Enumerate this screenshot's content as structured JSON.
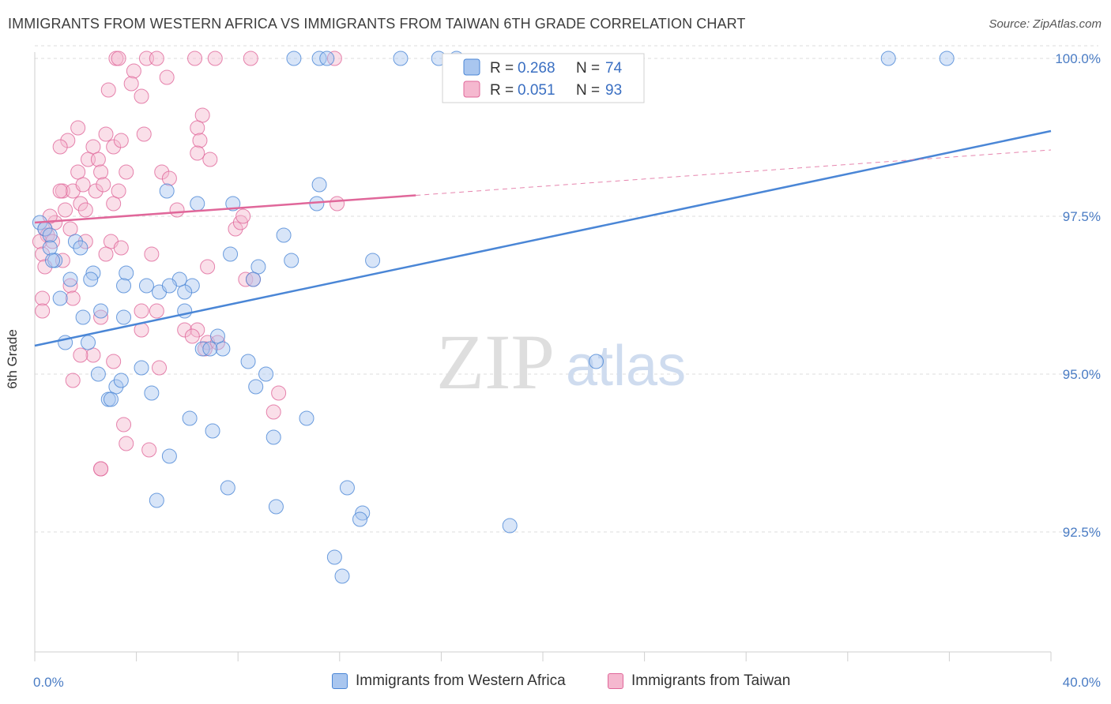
{
  "title": "IMMIGRANTS FROM WESTERN AFRICA VS IMMIGRANTS FROM TAIWAN 6TH GRADE CORRELATION CHART",
  "source": "Source: ZipAtlas.com",
  "watermark": {
    "zip": "ZIP",
    "atlas": "atlas"
  },
  "colors": {
    "blue": "#4a86d6",
    "blue_fill": "#a9c6ef",
    "pink": "#e0679a",
    "pink_fill": "#f5b8cf",
    "tick": "#4a7cc4"
  },
  "legend": {
    "r_label": "R =",
    "n_label": "N =",
    "rows": [
      {
        "r": "0.268",
        "n": "74"
      },
      {
        "r": "0.051",
        "n": "93"
      }
    ]
  },
  "bottom_legend": [
    "Immigrants from Western Africa",
    "Immigrants from Taiwan"
  ],
  "chart_data": {
    "type": "scatter",
    "title": "IMMIGRANTS FROM WESTERN AFRICA VS IMMIGRANTS FROM TAIWAN 6TH GRADE CORRELATION CHART",
    "xlabel": "",
    "ylabel": "6th Grade",
    "xlim": [
      0,
      40
    ],
    "ylim": [
      90.6,
      100.2
    ],
    "x_tick_labels": [
      {
        "value": 0,
        "label": "0.0%"
      },
      {
        "value": 40,
        "label": "40.0%"
      }
    ],
    "y_tick_labels": [
      {
        "value": 100.0,
        "label": "100.0%"
      },
      {
        "value": 97.5,
        "label": "97.5%"
      },
      {
        "value": 95.0,
        "label": "95.0%"
      },
      {
        "value": 92.5,
        "label": "92.5%"
      }
    ],
    "series": [
      {
        "name": "Immigrants from Western Africa",
        "color": "#4a86d6",
        "trend": {
          "x": [
            0,
            40
          ],
          "y": [
            95.45,
            98.85
          ],
          "dashed_after": null
        },
        "points": [
          [
            10.2,
            100.0
          ],
          [
            11.2,
            100.0
          ],
          [
            11.5,
            100.0
          ],
          [
            14.4,
            100.0
          ],
          [
            15.9,
            100.0
          ],
          [
            16.6,
            100.0
          ],
          [
            33.6,
            100.0
          ],
          [
            35.9,
            100.0
          ],
          [
            0.2,
            97.4
          ],
          [
            0.4,
            97.3
          ],
          [
            0.6,
            97.2
          ],
          [
            0.8,
            96.8
          ],
          [
            0.6,
            97.0
          ],
          [
            0.7,
            96.8
          ],
          [
            1.6,
            97.1
          ],
          [
            1.8,
            97.0
          ],
          [
            2.3,
            96.6
          ],
          [
            1.4,
            96.5
          ],
          [
            1.0,
            96.2
          ],
          [
            2.6,
            96.0
          ],
          [
            1.9,
            95.9
          ],
          [
            1.2,
            95.5
          ],
          [
            2.1,
            95.5
          ],
          [
            3.5,
            95.9
          ],
          [
            3.6,
            96.6
          ],
          [
            3.5,
            96.4
          ],
          [
            4.4,
            96.4
          ],
          [
            4.9,
            96.3
          ],
          [
            5.7,
            96.5
          ],
          [
            6.2,
            96.4
          ],
          [
            5.3,
            96.4
          ],
          [
            5.9,
            96.0
          ],
          [
            5.2,
            97.9
          ],
          [
            6.4,
            97.7
          ],
          [
            7.8,
            97.7
          ],
          [
            7.7,
            96.9
          ],
          [
            8.8,
            96.7
          ],
          [
            8.6,
            96.5
          ],
          [
            9.8,
            97.2
          ],
          [
            10.1,
            96.8
          ],
          [
            11.1,
            97.7
          ],
          [
            11.2,
            98.0
          ],
          [
            13.3,
            96.8
          ],
          [
            7.2,
            95.6
          ],
          [
            7.4,
            95.4
          ],
          [
            6.6,
            95.4
          ],
          [
            6.9,
            95.4
          ],
          [
            8.4,
            95.2
          ],
          [
            8.7,
            94.8
          ],
          [
            9.1,
            95.0
          ],
          [
            2.5,
            95.0
          ],
          [
            3.2,
            94.8
          ],
          [
            3.4,
            94.9
          ],
          [
            2.9,
            94.6
          ],
          [
            3.0,
            94.6
          ],
          [
            4.2,
            95.1
          ],
          [
            4.6,
            94.7
          ],
          [
            6.1,
            94.3
          ],
          [
            7.0,
            94.1
          ],
          [
            9.4,
            94.0
          ],
          [
            10.7,
            94.3
          ],
          [
            5.3,
            93.7
          ],
          [
            4.8,
            93.0
          ],
          [
            7.6,
            93.2
          ],
          [
            9.5,
            92.9
          ],
          [
            12.3,
            93.2
          ],
          [
            12.9,
            92.8
          ],
          [
            12.8,
            92.7
          ],
          [
            18.7,
            92.6
          ],
          [
            22.1,
            95.2
          ],
          [
            11.8,
            92.1
          ],
          [
            12.1,
            91.8
          ],
          [
            2.2,
            96.5
          ],
          [
            5.9,
            96.3
          ]
        ]
      },
      {
        "name": "Immigrants from Taiwan",
        "color": "#e0679a",
        "trend": {
          "x": [
            0,
            40
          ],
          "y": [
            97.4,
            98.55
          ],
          "solid_until": 15.0
        },
        "points": [
          [
            3.2,
            100.0
          ],
          [
            3.3,
            100.0
          ],
          [
            4.4,
            100.0
          ],
          [
            4.8,
            100.0
          ],
          [
            6.3,
            100.0
          ],
          [
            7.1,
            100.0
          ],
          [
            8.5,
            100.0
          ],
          [
            11.8,
            100.0
          ],
          [
            3.9,
            99.8
          ],
          [
            3.8,
            99.6
          ],
          [
            5.2,
            99.7
          ],
          [
            2.9,
            99.5
          ],
          [
            4.2,
            99.4
          ],
          [
            6.6,
            99.1
          ],
          [
            6.4,
            98.9
          ],
          [
            6.5,
            98.7
          ],
          [
            1.7,
            98.9
          ],
          [
            2.8,
            98.8
          ],
          [
            4.3,
            98.8
          ],
          [
            1.3,
            98.7
          ],
          [
            2.3,
            98.6
          ],
          [
            3.1,
            98.6
          ],
          [
            3.4,
            98.7
          ],
          [
            1.0,
            98.6
          ],
          [
            2.1,
            98.4
          ],
          [
            2.5,
            98.4
          ],
          [
            6.4,
            98.5
          ],
          [
            6.9,
            98.4
          ],
          [
            1.7,
            98.2
          ],
          [
            2.6,
            98.2
          ],
          [
            3.6,
            98.2
          ],
          [
            5.0,
            98.2
          ],
          [
            1.1,
            97.9
          ],
          [
            1.5,
            97.9
          ],
          [
            2.4,
            97.9
          ],
          [
            1.9,
            98.0
          ],
          [
            2.7,
            98.0
          ],
          [
            1.0,
            97.9
          ],
          [
            1.8,
            97.7
          ],
          [
            3.1,
            97.7
          ],
          [
            1.2,
            97.6
          ],
          [
            2.0,
            97.6
          ],
          [
            5.6,
            97.6
          ],
          [
            11.9,
            97.7
          ],
          [
            0.8,
            97.4
          ],
          [
            0.4,
            97.3
          ],
          [
            0.5,
            97.2
          ],
          [
            0.2,
            97.1
          ],
          [
            0.7,
            97.1
          ],
          [
            1.4,
            97.3
          ],
          [
            2.0,
            97.1
          ],
          [
            3.0,
            97.1
          ],
          [
            7.9,
            97.3
          ],
          [
            8.1,
            97.4
          ],
          [
            0.3,
            96.9
          ],
          [
            0.4,
            96.7
          ],
          [
            1.1,
            96.8
          ],
          [
            6.8,
            96.7
          ],
          [
            8.3,
            96.5
          ],
          [
            8.6,
            96.5
          ],
          [
            0.3,
            96.2
          ],
          [
            0.3,
            96.0
          ],
          [
            1.4,
            96.4
          ],
          [
            1.5,
            96.2
          ],
          [
            2.6,
            95.9
          ],
          [
            4.2,
            96.0
          ],
          [
            4.8,
            96.0
          ],
          [
            5.9,
            95.7
          ],
          [
            6.4,
            95.7
          ],
          [
            4.2,
            95.7
          ],
          [
            6.8,
            95.5
          ],
          [
            7.2,
            95.5
          ],
          [
            6.7,
            95.4
          ],
          [
            2.3,
            95.3
          ],
          [
            3.1,
            95.2
          ],
          [
            4.9,
            95.1
          ],
          [
            1.5,
            94.9
          ],
          [
            9.6,
            94.7
          ],
          [
            9.4,
            94.4
          ],
          [
            3.5,
            94.2
          ],
          [
            3.6,
            93.9
          ],
          [
            4.5,
            93.8
          ],
          [
            2.6,
            93.5
          ],
          [
            2.6,
            93.5
          ],
          [
            1.8,
            95.3
          ],
          [
            6.2,
            95.6
          ],
          [
            4.6,
            96.9
          ],
          [
            5.3,
            98.1
          ],
          [
            8.2,
            97.5
          ],
          [
            3.3,
            97.9
          ],
          [
            0.6,
            97.5
          ],
          [
            3.4,
            97.0
          ],
          [
            2.8,
            96.9
          ]
        ]
      }
    ]
  }
}
